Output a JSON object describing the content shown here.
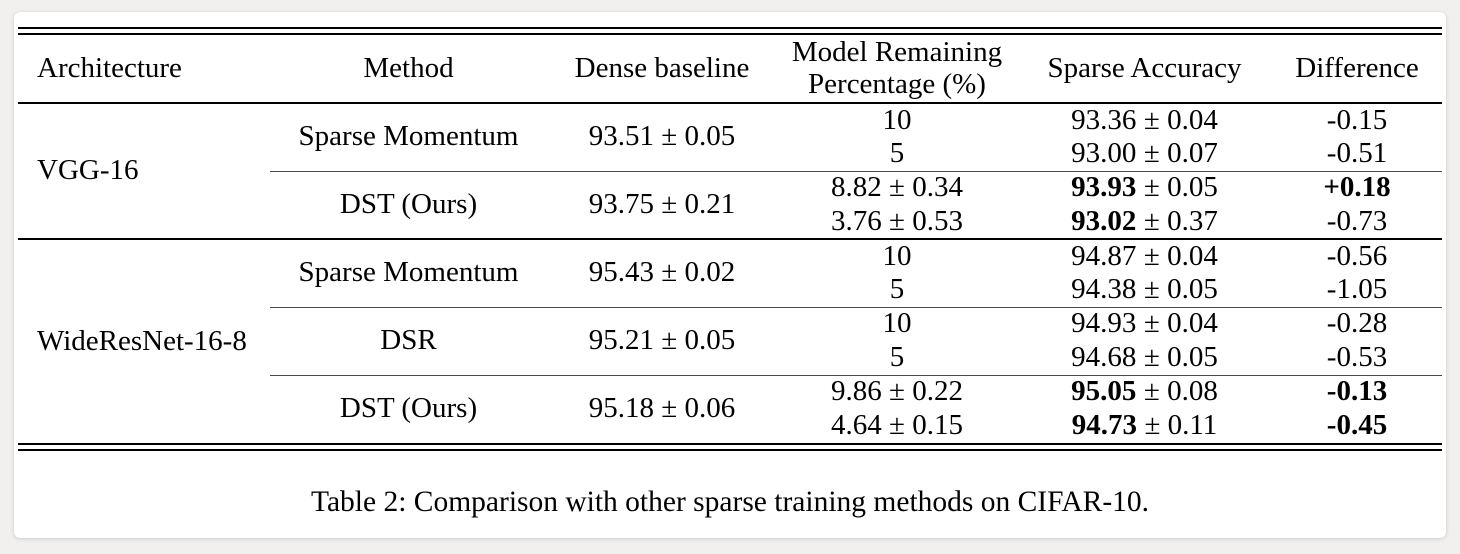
{
  "page": {
    "background_color": "#f1f0ee",
    "card_color": "#ffffff",
    "rule_color": "#000000",
    "cmidrule_color": "#4a4a4a"
  },
  "header": {
    "architecture": "Architecture",
    "method": "Method",
    "dense_baseline": "Dense baseline",
    "remaining_line1": "Model Remaining",
    "remaining_line2": "Percentage (%)",
    "sparse_accuracy": "Sparse Accuracy",
    "difference": "Difference"
  },
  "groups": [
    {
      "architecture": "VGG-16",
      "methods": [
        {
          "name": "Sparse Momentum",
          "dense_baseline": "93.51 ± 0.05",
          "rows": [
            {
              "remaining": "10",
              "acc_main": "93.36",
              "acc_err": "± 0.04",
              "diff": "-0.15"
            },
            {
              "remaining": "5",
              "acc_main": "93.00",
              "acc_err": "± 0.07",
              "diff": "-0.51"
            }
          ]
        },
        {
          "name": "DST (Ours)",
          "dense_baseline": "93.75 ± 0.21",
          "rows": [
            {
              "remaining": "8.82 ± 0.34",
              "acc_main": "93.93",
              "acc_err": "± 0.05",
              "diff": "+0.18"
            },
            {
              "remaining": "3.76 ± 0.53",
              "acc_main": "93.02",
              "acc_err": "± 0.37",
              "diff": "-0.73"
            }
          ]
        }
      ]
    },
    {
      "architecture": "WideResNet-16-8",
      "methods": [
        {
          "name": "Sparse Momentum",
          "dense_baseline": "95.43 ± 0.02",
          "rows": [
            {
              "remaining": "10",
              "acc_main": "94.87",
              "acc_err": "± 0.04",
              "diff": "-0.56"
            },
            {
              "remaining": "5",
              "acc_main": "94.38",
              "acc_err": "± 0.05",
              "diff": "-1.05"
            }
          ]
        },
        {
          "name": "DSR",
          "dense_baseline": "95.21 ± 0.05",
          "rows": [
            {
              "remaining": "10",
              "acc_main": "94.93",
              "acc_err": "± 0.04",
              "diff": "-0.28"
            },
            {
              "remaining": "5",
              "acc_main": "94.68",
              "acc_err": "± 0.05",
              "diff": "-0.53"
            }
          ]
        },
        {
          "name": "DST (Ours)",
          "dense_baseline": "95.18 ± 0.06",
          "rows": [
            {
              "remaining": "9.86 ± 0.22",
              "acc_main": "95.05",
              "acc_err": "± 0.08",
              "diff": "-0.13"
            },
            {
              "remaining": "4.64 ± 0.15",
              "acc_main": "94.73",
              "acc_err": "± 0.11",
              "diff": "-0.45"
            }
          ]
        }
      ]
    }
  ],
  "caption": "Table 2: Comparison with other sparse training methods on CIFAR-10."
}
